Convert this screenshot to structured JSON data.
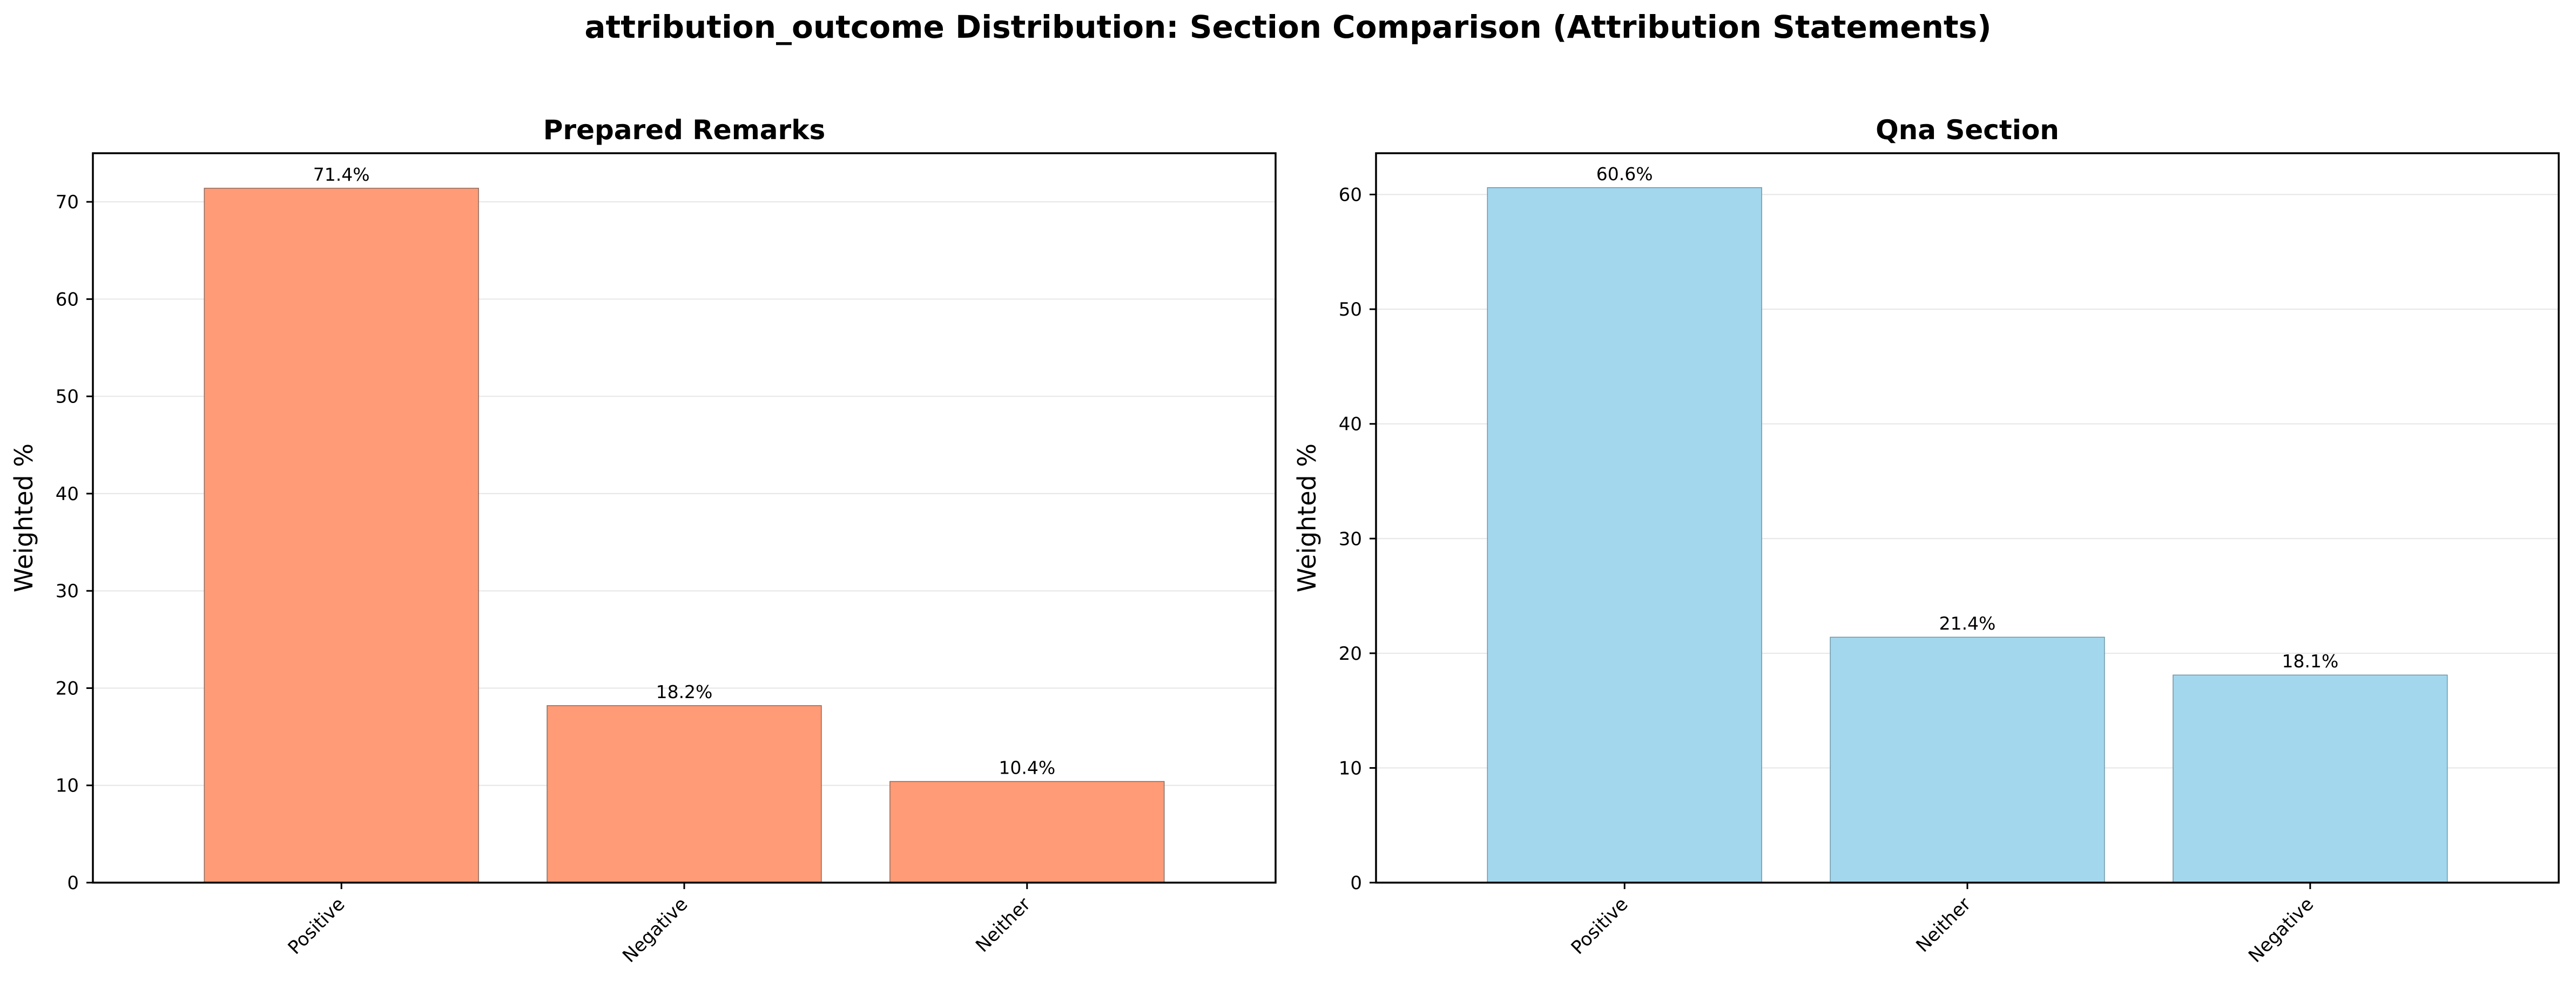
{
  "figure": {
    "suptitle": "attribution_outcome Distribution: Section Comparison (Attribution Statements)"
  },
  "chart_data": [
    {
      "type": "bar",
      "title": "Prepared Remarks",
      "xlabel": "",
      "ylabel": "Weighted %",
      "categories": [
        "Positive",
        "Negative",
        "Neither"
      ],
      "values": [
        71.4,
        18.2,
        10.4
      ],
      "data_labels": [
        "71.4%",
        "18.2%",
        "10.4%"
      ],
      "ylim": [
        0,
        75
      ],
      "yticks": [
        0,
        10,
        20,
        30,
        40,
        50,
        60,
        70
      ],
      "grid": "y",
      "bar_color": "#ff9b76",
      "edge_color": "#8a6a5e"
    },
    {
      "type": "bar",
      "title": "Qna Section",
      "xlabel": "",
      "ylabel": "Weighted %",
      "categories": [
        "Positive",
        "Neither",
        "Negative"
      ],
      "values": [
        60.6,
        21.4,
        18.1
      ],
      "data_labels": [
        "60.6%",
        "21.4%",
        "18.1%"
      ],
      "ylim": [
        0,
        63.6
      ],
      "yticks": [
        0,
        10,
        20,
        30,
        40,
        50,
        60
      ],
      "grid": "y",
      "bar_color": "#a3d7ed",
      "edge_color": "#6e97a8"
    }
  ]
}
